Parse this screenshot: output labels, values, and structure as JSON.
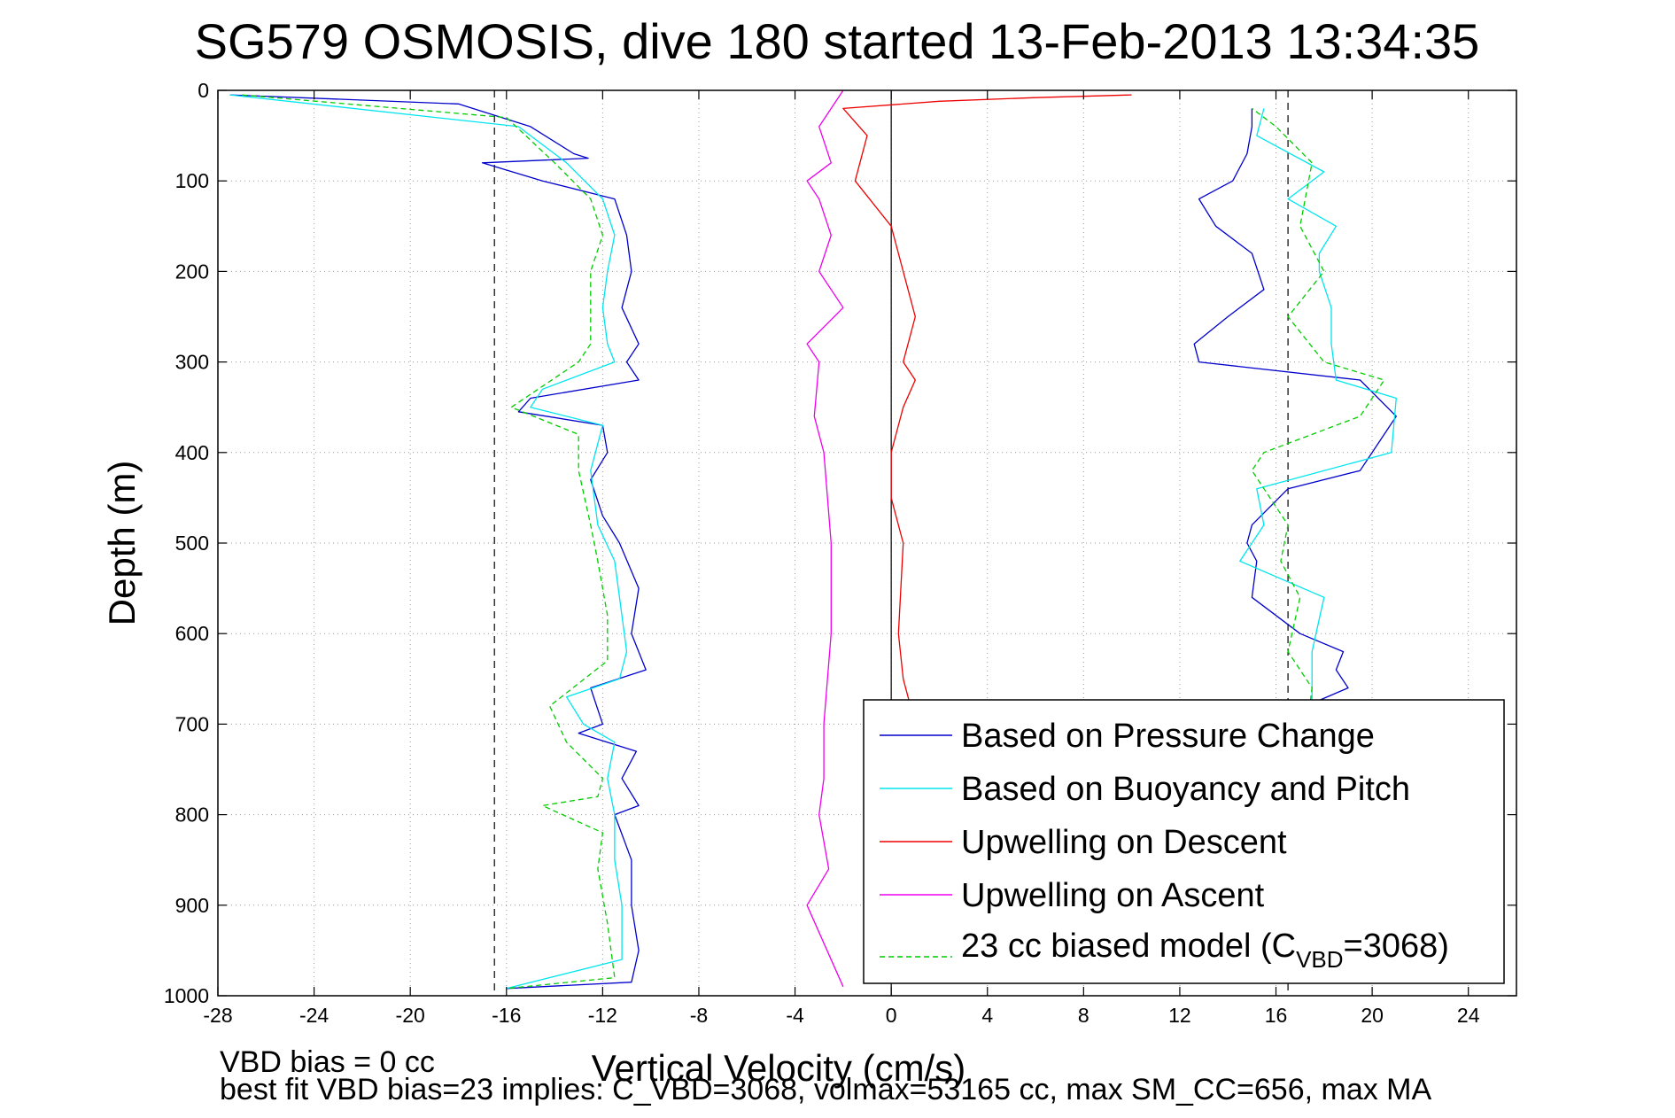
{
  "colors": {
    "pressure": "#0000cc",
    "buoyancy": "#00e5ee",
    "upwelling_descent": "#ee0000",
    "upwelling_ascent": "#ee00ee",
    "biased_model": "#00cc00"
  },
  "chart_data": {
    "type": "line",
    "title": "SG579 OSMOSIS, dive 180 started 13-Feb-2013 13:34:35",
    "xlabel": "Vertical Velocity (cm/s)",
    "ylabel": "Depth (m)",
    "xlim": [
      -28,
      26
    ],
    "ylim": [
      1000,
      0
    ],
    "y_reversed": true,
    "xticks": [
      -28,
      -24,
      -20,
      -16,
      -12,
      -8,
      -4,
      0,
      4,
      8,
      12,
      16,
      20,
      24
    ],
    "yticks": [
      0,
      100,
      200,
      300,
      400,
      500,
      600,
      700,
      800,
      900,
      1000
    ],
    "grid": true,
    "legend_position": "bottom-right",
    "reference_lines": [
      {
        "kind": "dashed-vertical",
        "x": -16.5
      },
      {
        "kind": "dashed-vertical",
        "x": 16.5
      },
      {
        "kind": "solid-vertical",
        "x": 0
      }
    ],
    "series": [
      {
        "name": "Based on Pressure Change",
        "color_key": "pressure",
        "dash": false,
        "segments": [
          {
            "label": "descent",
            "x": [
              -27.5,
              -18,
              -15,
              -13.2,
              -12.6,
              -17,
              -14.5,
              -11.5,
              -11,
              -10.8,
              -11.2,
              -10.5,
              -11,
              -10.5,
              -15,
              -15.5,
              -12,
              -11.8,
              -12.5,
              -12,
              -11.3,
              -10.5,
              -10.8,
              -10.2,
              -12.5,
              -12,
              -13,
              -10.6,
              -11.2,
              -10.5,
              -11.5,
              -10.8,
              -10.8,
              -10.5,
              -10.8,
              -16
            ],
            "y": [
              5,
              15,
              40,
              70,
              75,
              80,
              100,
              120,
              160,
              200,
              240,
              280,
              300,
              320,
              340,
              355,
              370,
              400,
              430,
              470,
              500,
              550,
              600,
              640,
              660,
              700,
              710,
              730,
              760,
              790,
              800,
              850,
              900,
              950,
              985,
              992
            ]
          },
          {
            "label": "ascent",
            "x": [
              15,
              13.5,
              13,
              12.8,
              13.5,
              14.5,
              15.5,
              19,
              18.5,
              18.8,
              17,
              15,
              15.2,
              14.8,
              15,
              16.5,
              19.5,
              21,
              19.5,
              12.8,
              12.6,
              14,
              15.5,
              15,
              13.5,
              12.8,
              14.2,
              14.8,
              15,
              15
            ],
            "y": [
              985,
              940,
              900,
              850,
              800,
              750,
              700,
              660,
              640,
              620,
              600,
              560,
              520,
              500,
              480,
              440,
              420,
              360,
              320,
              300,
              280,
              250,
              220,
              180,
              150,
              120,
              100,
              70,
              40,
              20
            ]
          }
        ]
      },
      {
        "name": "Based on Buoyancy and Pitch",
        "color_key": "buoyancy",
        "dash": false,
        "segments": [
          {
            "label": "descent",
            "x": [
              -27.5,
              -15.5,
              -13.5,
              -12,
              -11.5,
              -11.8,
              -12,
              -11.8,
              -11.5,
              -14.5,
              -15,
              -12,
              -12.5,
              -12.2,
              -11.5,
              -11.3,
              -11,
              -11.3,
              -13.5,
              -12.8,
              -11.5,
              -11.8,
              -11.5,
              -11.5,
              -11.2,
              -11.2,
              -16
            ],
            "y": [
              5,
              40,
              80,
              120,
              160,
              200,
              240,
              280,
              300,
              330,
              350,
              370,
              420,
              480,
              520,
              560,
              620,
              650,
              670,
              700,
              720,
              760,
              800,
              850,
              900,
              960,
              992
            ]
          },
          {
            "label": "ascent",
            "x": [
              15.5,
              16.8,
              18,
              18,
              17.5,
              17.5,
              17.5,
              18,
              14.5,
              15.5,
              15.2,
              20.8,
              21,
              18.5,
              18.3,
              18.3,
              17.8,
              17.8,
              18.5,
              16.5,
              18,
              15.2,
              15.5
            ],
            "y": [
              985,
              900,
              840,
              770,
              700,
              660,
              620,
              560,
              520,
              480,
              440,
              400,
              340,
              320,
              280,
              240,
              200,
              180,
              150,
              120,
              90,
              50,
              20
            ]
          }
        ]
      },
      {
        "name": "Upwelling on Descent",
        "color_key": "upwelling_descent",
        "dash": false,
        "segments": [
          {
            "label": "",
            "x": [
              10,
              6,
              2,
              -2,
              -1,
              -1.5,
              0,
              0.5,
              1,
              0.5,
              1,
              0.5,
              0,
              0,
              0.5,
              0.3,
              0.5,
              1
            ],
            "y": [
              5,
              8,
              12,
              20,
              50,
              100,
              150,
              200,
              250,
              300,
              320,
              350,
              400,
              450,
              500,
              600,
              650,
              700
            ]
          }
        ]
      },
      {
        "name": "Upwelling on Ascent",
        "color_key": "upwelling_ascent",
        "dash": false,
        "segments": [
          {
            "label": "",
            "x": [
              -2,
              -3,
              -2.5,
              -3.5,
              -3,
              -2.5,
              -3,
              -2,
              -3.5,
              -3,
              -3.2,
              -2.8,
              -2.5,
              -2.5,
              -2.8,
              -2.8,
              -3,
              -2.6,
              -3.5,
              -2
            ],
            "y": [
              0,
              40,
              80,
              100,
              120,
              160,
              200,
              240,
              280,
              300,
              360,
              400,
              500,
              600,
              700,
              760,
              800,
              860,
              900,
              990
            ]
          }
        ]
      },
      {
        "name": "23 cc biased model (CVBD=3068)",
        "color_key": "biased_model",
        "dash": true,
        "segments": [
          {
            "label": "descent",
            "x": [
              -27,
              -16,
              -14,
              -12.5,
              -12,
              -12.5,
              -12.5,
              -12.5,
              -13,
              -15.8,
              -13,
              -13,
              -12.5,
              -12.2,
              -11.8,
              -11.8,
              -14.2,
              -13.5,
              -12,
              -12.2,
              -14.5,
              -12,
              -12.2,
              -11.8,
              -11.5,
              -16
            ],
            "y": [
              5,
              30,
              80,
              120,
              160,
              200,
              240,
              280,
              300,
              350,
              380,
              420,
              480,
              520,
              580,
              630,
              680,
              720,
              760,
              780,
              790,
              820,
              860,
              920,
              980,
              992
            ]
          },
          {
            "label": "ascent",
            "x": [
              16,
              17.5,
              16.5,
              17,
              16.2,
              16.5,
              15,
              15.5,
              19.5,
              20.5,
              18,
              16.5,
              18,
              17,
              17.5,
              16,
              15
            ],
            "y": [
              985,
              660,
              620,
              560,
              520,
              480,
              420,
              400,
              360,
              320,
              300,
              250,
              200,
              150,
              80,
              40,
              20
            ]
          }
        ]
      }
    ]
  },
  "legend": {
    "items": [
      {
        "label": "Based on Pressure Change",
        "color_key": "pressure",
        "dash": false
      },
      {
        "label": "Based on Buoyancy and Pitch",
        "color_key": "buoyancy",
        "dash": false
      },
      {
        "label": "Upwelling on Descent",
        "color_key": "upwelling_descent",
        "dash": false
      },
      {
        "label": "Upwelling on Ascent",
        "color_key": "upwelling_ascent",
        "dash": false
      }
    ],
    "model_item": {
      "color_key": "biased_model",
      "dash": true,
      "prefix": "23 cc biased model (C",
      "subscript": "VBD",
      "suffix": "=3068)"
    }
  },
  "footer": {
    "line1": "VBD bias = 0 cc",
    "line2": "best fit VBD bias=23 implies: C_VBD=3068, volmax=53165 cc, max SM_CC=656, max MA"
  }
}
